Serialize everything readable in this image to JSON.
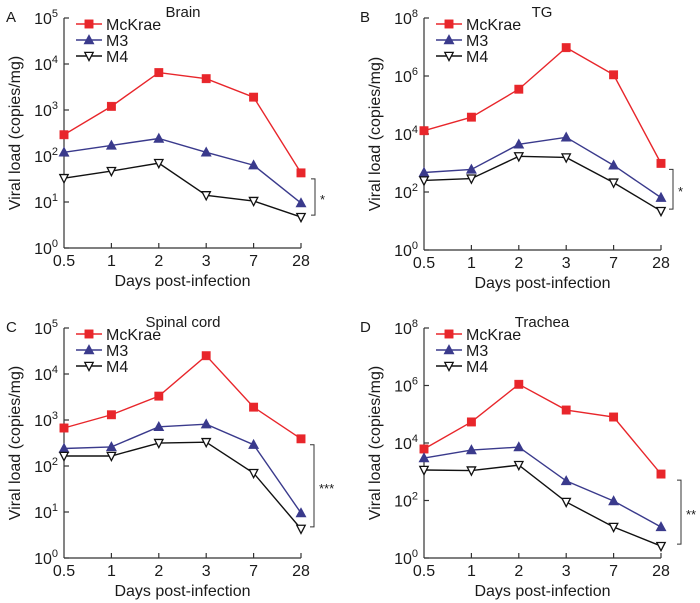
{
  "colors": {
    "McKrae": "#e8262b",
    "M3": "#3a3a8c",
    "M4": "#111111"
  },
  "chart_data": [
    {
      "type": "line",
      "panel_label": "A",
      "title": "Brain",
      "xlabel": "Days post-infection",
      "ylabel": "Viral load (copies/mg)",
      "yscale": "log",
      "ylim": [
        1,
        100000
      ],
      "ytick_exponents": [
        0,
        1,
        2,
        3,
        4,
        5
      ],
      "categories": [
        "0.5",
        "1",
        "2",
        "3",
        "7",
        "28"
      ],
      "legend_position": "top-left",
      "series": [
        {
          "name": "McKrae",
          "marker": "filled-square",
          "values": [
            290,
            1200,
            6500,
            4800,
            1900,
            43
          ]
        },
        {
          "name": "M3",
          "marker": "filled-triangle-up",
          "values": [
            120,
            170,
            240,
            120,
            63,
            9.5
          ]
        },
        {
          "name": "M4",
          "marker": "open-triangle-down",
          "values": [
            33,
            47,
            70,
            14,
            10.5,
            4.7
          ]
        }
      ],
      "significance": {
        "label": "*",
        "between": [
          "McKrae",
          "M4"
        ],
        "at": "28"
      }
    },
    {
      "type": "line",
      "panel_label": "B",
      "title": "TG",
      "xlabel": "Days post-infection",
      "ylabel": "Viral load (copies/mg)",
      "yscale": "log",
      "ylim": [
        1,
        100000000
      ],
      "ytick_exponents": [
        0,
        2,
        4,
        6,
        8
      ],
      "categories": [
        "0.5",
        "1",
        "2",
        "3",
        "7",
        "28"
      ],
      "legend_position": "top-left",
      "series": [
        {
          "name": "McKrae",
          "marker": "filled-square",
          "values": [
            13000,
            38000,
            350000,
            9500000,
            1100000,
            970
          ]
        },
        {
          "name": "M3",
          "marker": "filled-triangle-up",
          "values": [
            470,
            600,
            4400,
            7700,
            830,
            64
          ]
        },
        {
          "name": "M4",
          "marker": "open-triangle-down",
          "values": [
            250,
            290,
            1700,
            1550,
            210,
            22
          ]
        }
      ],
      "significance": {
        "label": "*",
        "between": [
          "McKrae",
          "M4"
        ],
        "at": "28"
      }
    },
    {
      "type": "line",
      "panel_label": "C",
      "title": "Spinal cord",
      "xlabel": "Days post-infection",
      "ylabel": "Viral load (copies/mg)",
      "yscale": "log",
      "ylim": [
        1,
        100000
      ],
      "ytick_exponents": [
        0,
        1,
        2,
        3,
        4,
        5
      ],
      "categories": [
        "0.5",
        "1",
        "2",
        "3",
        "7",
        "28"
      ],
      "legend_position": "top-left",
      "series": [
        {
          "name": "McKrae",
          "marker": "filled-square",
          "values": [
            670,
            1300,
            3300,
            25000,
            1900,
            390
          ]
        },
        {
          "name": "M3",
          "marker": "filled-triangle-up",
          "values": [
            240,
            260,
            710,
            810,
            290,
            9.5
          ]
        },
        {
          "name": "M4",
          "marker": "open-triangle-down",
          "values": [
            165,
            165,
            316,
            330,
            70,
            4.3
          ]
        }
      ],
      "significance": {
        "label": "***",
        "between": [
          "McKrae",
          "M4"
        ],
        "at": "28"
      }
    },
    {
      "type": "line",
      "panel_label": "D",
      "title": "Trachea",
      "xlabel": "Days post-infection",
      "ylabel": "Viral load (copies/mg)",
      "yscale": "log",
      "ylim": [
        1,
        100000000
      ],
      "ytick_exponents": [
        0,
        2,
        4,
        6,
        8
      ],
      "categories": [
        "0.5",
        "1",
        "2",
        "3",
        "7",
        "28"
      ],
      "legend_position": "top-left",
      "series": [
        {
          "name": "McKrae",
          "marker": "filled-square",
          "values": [
            6200,
            54000,
            1100000,
            140000,
            80000,
            830
          ]
        },
        {
          "name": "M3",
          "marker": "filled-triangle-up",
          "values": [
            3000,
            5700,
            7200,
            480,
            96,
            12
          ]
        },
        {
          "name": "M4",
          "marker": "open-triangle-down",
          "values": [
            1150,
            1100,
            1700,
            89,
            12,
            2.6
          ]
        }
      ],
      "significance": {
        "label": "**",
        "between": [
          "McKrae",
          "M4"
        ],
        "at": "28"
      }
    }
  ]
}
